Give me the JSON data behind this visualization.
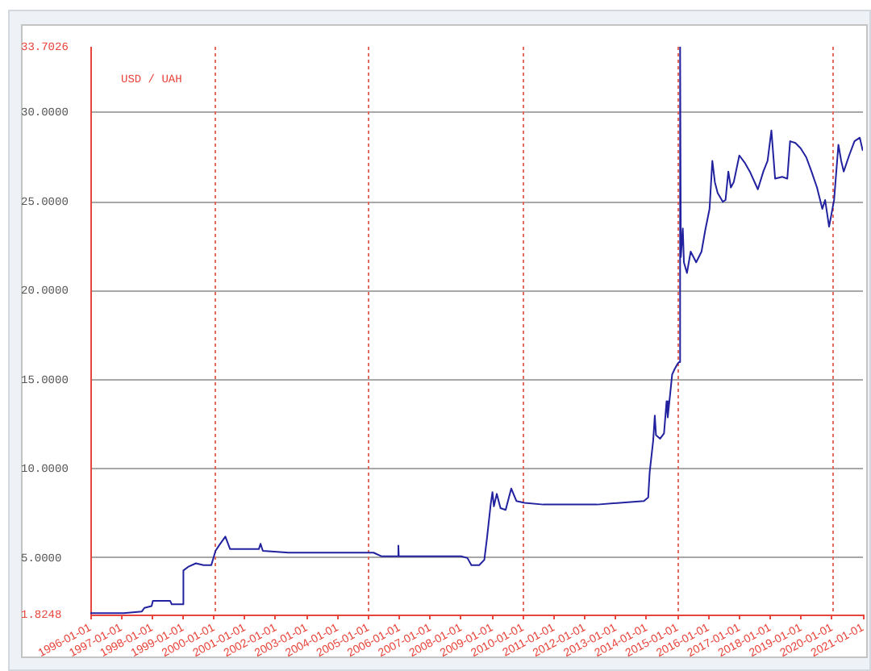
{
  "chart_data": {
    "type": "line",
    "ylabel": "USD / UAH",
    "x": [
      "1996-01-02",
      "1996-08-01",
      "1997-01-01",
      "1997-02-01",
      "1997-09-01",
      "1997-10-01",
      "1997-12-25",
      "1998-01-10",
      "1998-08-01",
      "1998-08-20",
      "1998-12-25",
      "1999-01-05",
      "1999-03-01",
      "1999-06-01",
      "1999-09-01",
      "1999-12-01",
      "2000-01-20",
      "2000-03-01",
      "2000-05-15",
      "2000-07-10",
      "2001-06-15",
      "2001-07-05",
      "2001-08-01",
      "2002-06-01",
      "2003-06-01",
      "2004-06-01",
      "2005-03-01",
      "2005-06-01",
      "2005-12-15",
      "2005-12-20",
      "2005-12-25",
      "2008-01-01",
      "2008-03-15",
      "2008-05-01",
      "2008-08-01",
      "2008-10-01",
      "2008-11-01",
      "2008-12-15",
      "2009-01-05",
      "2009-01-22",
      "2009-02-25",
      "2009-04-10",
      "2009-06-10",
      "2009-08-15",
      "2009-10-15",
      "2010-01-20",
      "2010-08-30",
      "2012-05-25",
      "2013-12-01",
      "2014-01-20",
      "2014-02-06",
      "2014-03-20",
      "2014-04-08",
      "2014-04-22",
      "2014-06-10",
      "2014-07-26",
      "2014-08-25",
      "2014-09-08",
      "2014-10-30",
      "2014-11-28",
      "2015-01-01",
      "2015-01-20",
      "2015-02-01",
      "2015-02-10",
      "2015-03-05",
      "2015-03-18",
      "2015-04-23",
      "2015-06-06",
      "2015-08-10",
      "2015-10-12",
      "2015-11-25",
      "2016-01-15",
      "2016-02-17",
      "2016-03-18",
      "2016-04-20",
      "2016-06-20",
      "2016-07-22",
      "2016-08-24",
      "2016-09-23",
      "2016-10-27",
      "2017-01-01",
      "2017-03-05",
      "2017-05-05",
      "2017-08-08",
      "2017-10-12",
      "2017-12-01",
      "2018-01-15",
      "2018-02-28",
      "2018-05-22",
      "2018-07-22",
      "2018-08-24",
      "2018-10-26",
      "2018-12-28",
      "2019-03-03",
      "2019-05-04",
      "2019-07-08",
      "2019-09-09",
      "2019-10-12",
      "2019-11-28",
      "2020-01-26",
      "2020-03-17",
      "2020-04-19",
      "2020-05-19",
      "2020-07-22",
      "2020-09-23",
      "2020-11-25",
      "2020-12-28"
    ],
    "series": [
      {
        "color": "#2222a0",
        "values": [
          1.9,
          1.9,
          1.9,
          1.9,
          2.0,
          2.2,
          2.3,
          2.6,
          2.6,
          2.4,
          2.4,
          4.3,
          4.5,
          4.7,
          4.6,
          4.6,
          5.4,
          5.7,
          6.2,
          5.5,
          5.5,
          5.8,
          5.4,
          5.3,
          5.3,
          5.3,
          5.3,
          5.1,
          5.1,
          5.7,
          5.1,
          5.1,
          5.0,
          4.6,
          4.6,
          4.9,
          6.1,
          8.0,
          8.7,
          7.9,
          8.6,
          7.8,
          7.7,
          8.9,
          8.2,
          8.1,
          8.0,
          8.0,
          8.2,
          8.4,
          9.8,
          11.6,
          13.0,
          11.9,
          11.7,
          12.0,
          13.8,
          12.9,
          15.3,
          15.6,
          15.9,
          16.0,
          33.7,
          21.9,
          23.5,
          21.6,
          21.0,
          22.2,
          21.6,
          22.2,
          23.4,
          24.6,
          27.3,
          26.1,
          25.5,
          25.0,
          25.1,
          26.7,
          25.8,
          26.1,
          27.6,
          27.2,
          26.7,
          25.7,
          26.7,
          27.3,
          29.0,
          26.3,
          26.4,
          26.3,
          28.4,
          28.3,
          28.0,
          27.5,
          26.7,
          25.8,
          24.6,
          25.1,
          23.6,
          25.1,
          28.2,
          27.3,
          26.7,
          27.6,
          28.4,
          28.6,
          27.9
        ]
      }
    ],
    "xlim": [
      "1996-01-01",
      "2021-01-01"
    ],
    "xticks": [
      "1996-01-01",
      "1997-01-01",
      "1998-01-01",
      "1999-01-01",
      "2000-01-01",
      "2001-01-01",
      "2002-01-01",
      "2003-01-01",
      "2004-01-01",
      "2005-01-01",
      "2006-01-01",
      "2007-01-01",
      "2008-01-01",
      "2009-01-01",
      "2010-01-01",
      "2011-01-01",
      "2012-01-01",
      "2013-01-01",
      "2014-01-01",
      "2015-01-01",
      "2016-01-01",
      "2017-01-01",
      "2018-01-01",
      "2019-01-01",
      "2020-01-01",
      "2021-01-01"
    ],
    "ylim": [
      1.8248,
      33.7026
    ],
    "yticks": [
      1.8248,
      {
        "value": 5,
        "label": "5.0000"
      },
      {
        "value": 10,
        "label": "10.0000"
      },
      {
        "value": 15,
        "label": "15.0000"
      },
      {
        "value": 20,
        "label": "20.0000"
      },
      {
        "value": 25,
        "label": "25.0000"
      },
      {
        "value": 30,
        "label": "30.0000"
      },
      33.7026
    ],
    "grid": "y",
    "ref_lines": [
      {
        "axis": "x",
        "value": "2000-01-01",
        "color": "#e06a5c",
        "line_style": "dotted"
      },
      {
        "axis": "x",
        "value": "2005-01-01",
        "color": "#e06a5c",
        "line_style": "dotted"
      },
      {
        "axis": "x",
        "value": "2010-01-01",
        "color": "#e06a5c",
        "line_style": "dotted"
      },
      {
        "axis": "x",
        "value": "2015-01-01",
        "color": "#e06a5c",
        "line_style": "dotted"
      },
      {
        "axis": "x",
        "value": "2020-01-01",
        "color": "#e06a5c",
        "line_style": "dotted"
      }
    ]
  }
}
